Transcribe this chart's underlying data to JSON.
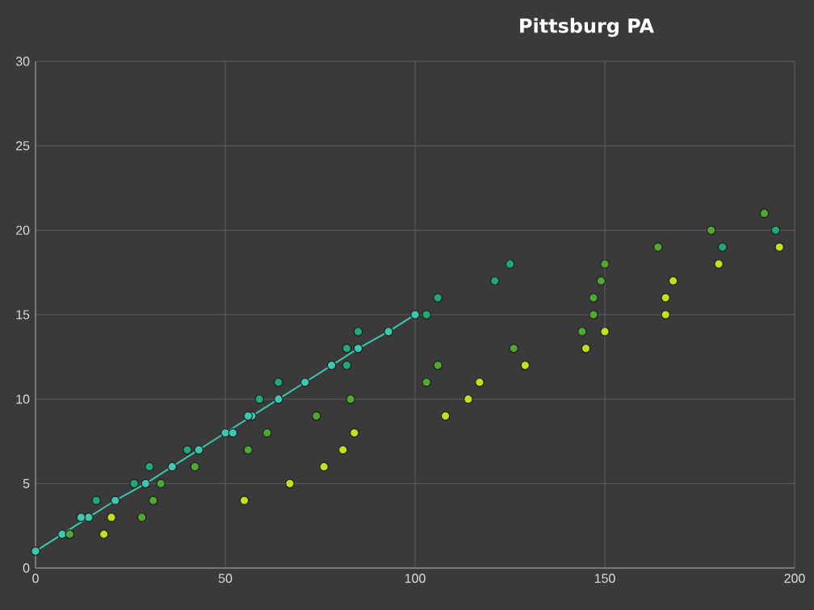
{
  "chart_data": {
    "type": "scatter",
    "title": "Pittsburg PA",
    "xlim": [
      0,
      200
    ],
    "ylim": [
      0,
      30
    ],
    "xticks": [
      0,
      50,
      100,
      150,
      200
    ],
    "yticks": [
      0,
      5,
      10,
      15,
      20,
      25,
      30
    ],
    "grid": true,
    "marker": "circle",
    "series": [
      {
        "type": "line",
        "color": "#3cc8b0",
        "x": [
          0,
          7,
          14,
          21,
          29,
          36,
          43,
          50,
          57,
          64,
          71,
          78,
          85,
          93,
          100
        ],
        "values": [
          1,
          2,
          3,
          4,
          5,
          6,
          7,
          8,
          9,
          10,
          11,
          12,
          13,
          14,
          15
        ]
      },
      {
        "type": "scatter",
        "color": "#3cc8b0",
        "x": [
          12,
          52,
          56
        ],
        "values": [
          3,
          8,
          9
        ]
      },
      {
        "type": "scatter",
        "color": "#20a878",
        "x": [
          16,
          26,
          30,
          40,
          59,
          64,
          82,
          82,
          85,
          103,
          106,
          121,
          125,
          181,
          195
        ],
        "values": [
          4,
          5,
          6,
          7,
          10,
          11,
          12,
          13,
          14,
          15,
          16,
          17,
          18,
          19,
          20
        ]
      },
      {
        "type": "scatter",
        "color": "#50a830",
        "x": [
          9,
          28,
          31,
          33,
          42,
          56,
          61,
          74,
          83,
          103,
          106,
          126,
          144,
          147,
          147,
          149,
          150,
          164,
          178,
          192
        ],
        "values": [
          2,
          3,
          4,
          5,
          6,
          7,
          8,
          9,
          10,
          11,
          12,
          13,
          14,
          15,
          16,
          17,
          18,
          19,
          20,
          21
        ]
      },
      {
        "type": "scatter",
        "color": "#c0e020",
        "x": [
          18,
          20,
          55,
          67,
          76,
          81,
          84,
          108,
          114,
          117,
          129,
          145,
          150,
          166,
          166,
          168,
          180,
          196
        ],
        "values": [
          2,
          3,
          4,
          5,
          6,
          7,
          8,
          9,
          10,
          11,
          12,
          13,
          14,
          15,
          16,
          17,
          18,
          19
        ]
      }
    ]
  }
}
